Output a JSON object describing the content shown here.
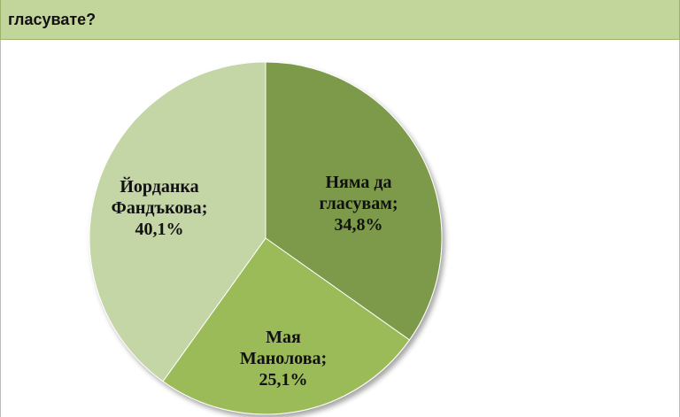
{
  "chart_data": {
    "type": "pie",
    "title": "гласувате?",
    "categories": [
      "Няма да гласувам",
      "Мая Манолова",
      "Йорданка Фандъкова"
    ],
    "values": [
      34.8,
      25.1,
      40.1
    ],
    "value_labels": [
      "34,8%",
      "25,1%",
      "40,1%"
    ],
    "label_separator": ";",
    "colors": [
      "#7b9a48",
      "#9bbb59",
      "#c4d5a6"
    ]
  }
}
